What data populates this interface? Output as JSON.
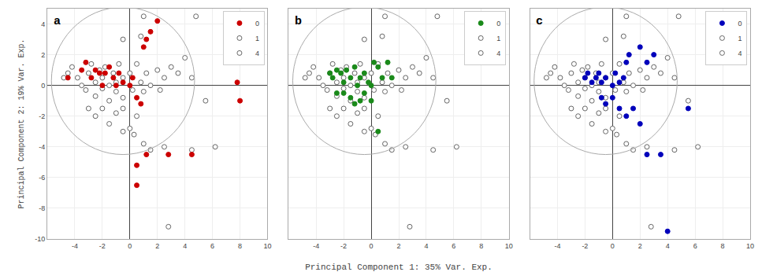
{
  "chart_data": [
    {
      "type": "scatter",
      "title": "a",
      "ylabel": "Principal Component 2: 19% Var. Exp.",
      "xlim": [
        -6,
        10
      ],
      "ylim": [
        -10,
        5
      ],
      "xticks": [
        -4,
        -2,
        0,
        2,
        4,
        6,
        8,
        10
      ],
      "yticks": [
        -10,
        -8,
        -6,
        -4,
        -2,
        0,
        2,
        4
      ],
      "grid": true,
      "legend": "upper right",
      "ellipse": {
        "cx": -0.5,
        "cy": 0.3,
        "rx": 5.2,
        "ry": 4.8
      },
      "series": [
        {
          "name": "0",
          "color": "#cc0000",
          "marker": "filled",
          "x": [
            -4.5,
            -3.5,
            -3.2,
            -2.8,
            -2.5,
            -2.2,
            -2.0,
            -1.8,
            -1.5,
            -1.2,
            -1.0,
            -0.8,
            -0.5,
            0.0,
            0.2,
            0.5,
            0.8,
            1.0,
            1.2,
            1.5,
            2.0,
            7.8,
            8.0,
            1.2,
            2.8,
            4.5,
            0.5,
            0.5
          ],
          "values": [
            0.5,
            1.0,
            1.5,
            0.5,
            1.0,
            0.8,
            0.0,
            0.8,
            1.2,
            0.5,
            0.0,
            0.8,
            0.2,
            0.0,
            0.5,
            -0.8,
            -1.2,
            2.5,
            3.0,
            3.5,
            4.2,
            0.2,
            -1.0,
            -4.5,
            -4.5,
            -4.5,
            -5.2,
            -6.5
          ]
        },
        {
          "name": "1",
          "color": "#666666",
          "marker": "open",
          "x": [
            -4.8,
            -4.5,
            -4.2,
            -3.8,
            -3.5,
            -3.2,
            -3.0,
            -2.8,
            -2.5,
            -2.5,
            -2.2,
            -2.0,
            -2.0,
            -1.8,
            -1.5,
            -1.5,
            -1.2,
            -1.0,
            -1.0,
            -0.8,
            -0.5,
            -0.5,
            0.0,
            0.2,
            0.5,
            0.8,
            1.0,
            1.2,
            1.5,
            2.0,
            2.2,
            2.5,
            3.0,
            3.5,
            4.0,
            -3.0,
            -2.5,
            -2.0,
            -1.5,
            -1.0,
            -0.5,
            0.0,
            0.5,
            1.0,
            1.5,
            2.5,
            4.5,
            2.8,
            1.0,
            4.8,
            5.5,
            6.2,
            -0.5,
            0.8,
            4.5,
            -0.5,
            0.3
          ],
          "values": [
            0.5,
            0.8,
            1.2,
            0.5,
            0.0,
            -0.3,
            0.8,
            1.4,
            0.2,
            -0.7,
            1.0,
            0.5,
            -0.2,
            1.2,
            0.0,
            -1.0,
            0.8,
            0.2,
            -0.4,
            1.4,
            0.5,
            -0.8,
            0.8,
            -0.3,
            1.4,
            0.2,
            -0.4,
            0.8,
            0.0,
            1.0,
            -0.3,
            0.5,
            1.2,
            0.8,
            1.8,
            -1.5,
            -2.0,
            -1.5,
            -2.5,
            -1.8,
            -1.5,
            -2.8,
            -2.0,
            -3.8,
            -4.2,
            -4.0,
            -4.2,
            -9.2,
            4.5,
            4.5,
            -1.0,
            -4.0,
            3.0,
            3.2,
            0.5,
            -3.0,
            -3.2
          ]
        },
        {
          "name": "4",
          "color": "#666666",
          "marker": "open",
          "x": [],
          "values": []
        }
      ]
    },
    {
      "type": "scatter",
      "title": "b",
      "xlabel": "Principal Component 1: 35% Var. Exp.",
      "xlim": [
        -6,
        10
      ],
      "ylim": [
        -10,
        5
      ],
      "xticks": [
        -4,
        -2,
        0,
        2,
        4,
        6,
        8,
        10
      ],
      "yticks": [
        -10,
        -8,
        -6,
        -4,
        -2,
        0,
        2,
        4
      ],
      "grid": true,
      "legend": "upper right",
      "tick_labels": "x",
      "ellipse": {
        "cx": -0.5,
        "cy": 0.3,
        "rx": 5.2,
        "ry": 4.8
      },
      "series": [
        {
          "name": "0",
          "color": "#1a8a1a",
          "marker": "filled",
          "x": [
            -3.0,
            -2.8,
            -2.5,
            -2.5,
            -2.2,
            -2.0,
            -2.0,
            -1.8,
            -1.5,
            -1.2,
            -1.0,
            -0.8,
            -0.5,
            -0.2,
            0.0,
            0.2,
            0.5,
            0.8,
            1.2,
            1.5,
            -1.5,
            -1.2,
            -0.8,
            -0.5,
            0.0,
            0.5
          ],
          "values": [
            0.8,
            0.5,
            1.0,
            -0.5,
            0.8,
            0.2,
            -0.5,
            1.0,
            0.5,
            1.2,
            0.0,
            0.5,
            0.8,
            0.2,
            0.0,
            1.5,
            1.2,
            0.5,
            1.5,
            0.5,
            -0.8,
            -1.2,
            -1.0,
            -0.5,
            -1.0,
            -3.0
          ]
        },
        {
          "name": "1",
          "color": "#666666",
          "marker": "open",
          "x": [
            -4.8,
            -4.5,
            -4.2,
            -3.8,
            -3.5,
            -3.2,
            -3.0,
            -2.8,
            -2.5,
            -2.5,
            -2.2,
            -2.0,
            -2.0,
            -1.8,
            -1.5,
            -1.5,
            -1.2,
            -1.0,
            -1.0,
            -0.8,
            -0.5,
            -0.5,
            0.0,
            0.2,
            0.5,
            0.8,
            1.0,
            1.2,
            1.5,
            2.0,
            2.2,
            2.5,
            3.0,
            3.5,
            4.0,
            -3.0,
            -2.5,
            -2.0,
            -1.5,
            -1.0,
            -0.5,
            0.0,
            0.5,
            1.0,
            1.5,
            2.5,
            4.5,
            2.8,
            1.0,
            4.8,
            5.5,
            6.2,
            -0.5,
            0.8,
            4.5,
            -0.5,
            0.3
          ],
          "values": [
            0.5,
            0.8,
            1.2,
            0.5,
            0.0,
            -0.3,
            0.8,
            1.4,
            0.2,
            -0.7,
            1.0,
            0.5,
            -0.2,
            1.2,
            0.0,
            -1.0,
            0.8,
            0.2,
            -0.4,
            1.4,
            0.5,
            -0.8,
            0.8,
            -0.3,
            1.4,
            0.2,
            -0.4,
            0.8,
            0.0,
            1.0,
            -0.3,
            0.5,
            1.2,
            0.8,
            1.8,
            -1.5,
            -2.0,
            -1.5,
            -2.5,
            -1.8,
            -1.5,
            -2.8,
            -2.0,
            -3.8,
            -4.2,
            -4.0,
            -4.2,
            -9.2,
            4.5,
            4.5,
            -1.0,
            -4.0,
            3.0,
            3.2,
            0.5,
            -3.0,
            -3.2
          ]
        },
        {
          "name": "4",
          "color": "#666666",
          "marker": "open",
          "x": [],
          "values": []
        }
      ]
    },
    {
      "type": "scatter",
      "title": "c",
      "xlim": [
        -6,
        10
      ],
      "ylim": [
        -10,
        5
      ],
      "xticks": [
        -4,
        -2,
        0,
        2,
        4,
        6,
        8,
        10
      ],
      "yticks": [
        -10,
        -8,
        -6,
        -4,
        -2,
        0,
        2,
        4
      ],
      "grid": true,
      "legend": "upper right",
      "tick_labels": "x",
      "ellipse": {
        "cx": -0.5,
        "cy": 0.3,
        "rx": 5.2,
        "ry": 4.8
      },
      "series": [
        {
          "name": "0",
          "color": "#0000bb",
          "marker": "filled",
          "x": [
            -2.0,
            -1.8,
            -1.5,
            -1.2,
            -1.0,
            -0.8,
            -0.5,
            0.0,
            0.2,
            0.5,
            0.8,
            1.0,
            1.2,
            2.0,
            2.5,
            3.0,
            -0.8,
            -0.5,
            0.0,
            0.5,
            1.0,
            1.5,
            2.0,
            2.5,
            3.5,
            4.0,
            5.5
          ],
          "values": [
            0.5,
            0.8,
            0.2,
            0.5,
            0.8,
            0.2,
            0.5,
            0.0,
            0.8,
            0.2,
            0.5,
            1.5,
            2.0,
            2.5,
            1.5,
            2.0,
            -0.8,
            -1.2,
            -0.8,
            -1.5,
            -2.0,
            -1.5,
            -2.5,
            -4.5,
            -4.5,
            -9.5,
            -1.5
          ]
        },
        {
          "name": "1",
          "color": "#666666",
          "marker": "open",
          "x": [
            -4.8,
            -4.5,
            -4.2,
            -3.8,
            -3.5,
            -3.2,
            -3.0,
            -2.8,
            -2.5,
            -2.5,
            -2.2,
            -2.0,
            -2.0,
            -1.8,
            -1.5,
            -1.5,
            -1.2,
            -1.0,
            -1.0,
            -0.8,
            -0.5,
            -0.5,
            0.0,
            0.2,
            0.5,
            0.8,
            1.0,
            1.2,
            1.5,
            2.0,
            2.2,
            2.5,
            3.0,
            3.5,
            4.0,
            -3.0,
            -2.5,
            -2.0,
            -1.5,
            -1.0,
            -0.5,
            0.0,
            0.5,
            1.0,
            1.5,
            2.5,
            4.5,
            2.8,
            1.0,
            4.8,
            5.5,
            6.2,
            -0.5,
            0.8,
            4.5,
            -0.5,
            0.3
          ],
          "values": [
            0.5,
            0.8,
            1.2,
            0.5,
            0.0,
            -0.3,
            0.8,
            1.4,
            0.2,
            -0.7,
            1.0,
            0.5,
            -0.2,
            1.2,
            0.0,
            -1.0,
            0.8,
            0.2,
            -0.4,
            1.4,
            0.5,
            -0.8,
            0.8,
            -0.3,
            1.4,
            0.2,
            -0.4,
            0.8,
            0.0,
            1.0,
            -0.3,
            0.5,
            1.2,
            0.8,
            1.8,
            -1.5,
            -2.0,
            -1.5,
            -2.5,
            -1.8,
            -1.5,
            -2.8,
            -2.0,
            -3.8,
            -4.2,
            -4.0,
            -4.2,
            -9.2,
            4.5,
            4.5,
            -1.0,
            -4.0,
            3.0,
            3.2,
            0.5,
            -3.0,
            -3.2
          ]
        },
        {
          "name": "4",
          "color": "#666666",
          "marker": "open",
          "x": [],
          "values": []
        }
      ]
    }
  ]
}
